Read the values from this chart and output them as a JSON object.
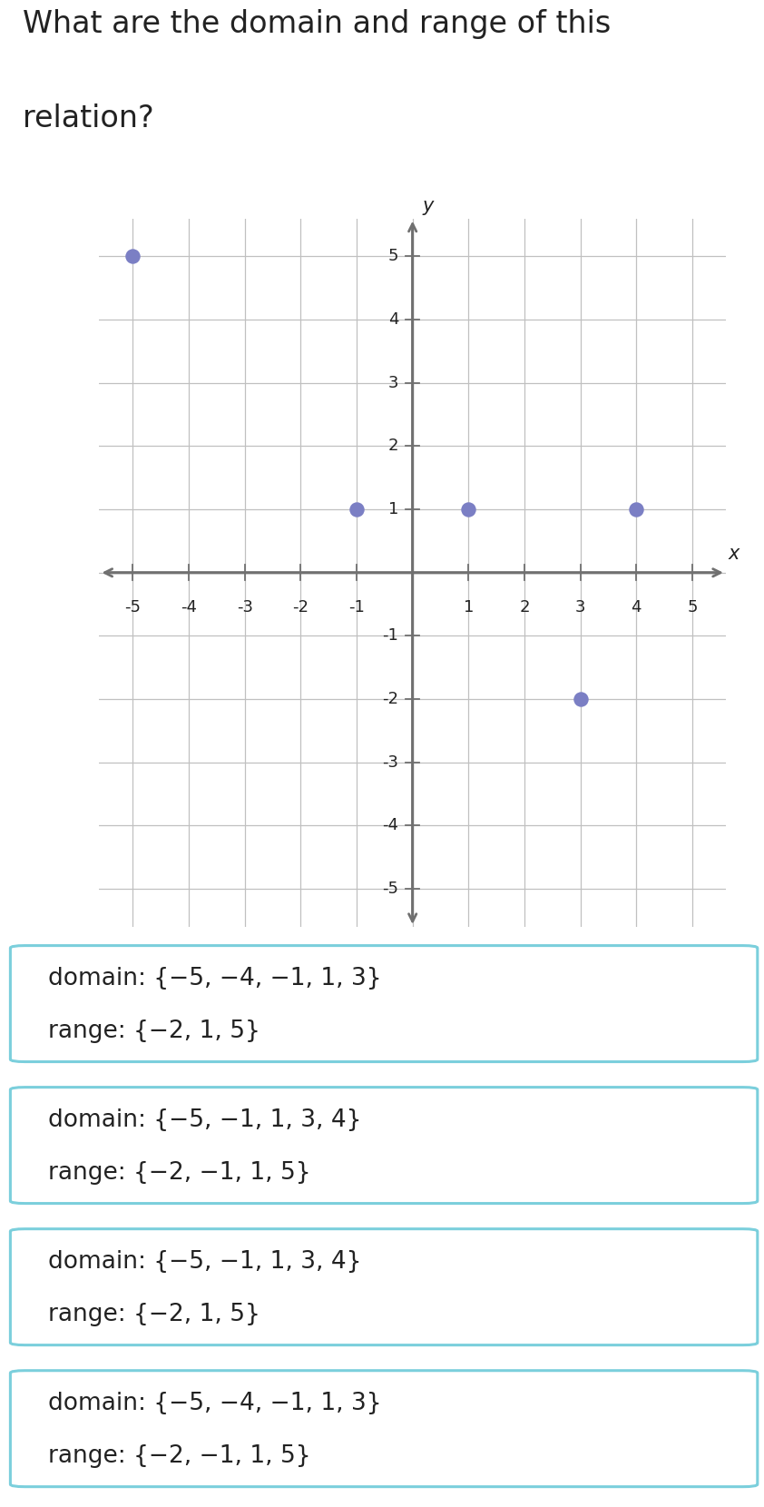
{
  "title_line1": "What are the domain and range of this",
  "title_line2": "relation?",
  "title_fontsize": 24,
  "points": [
    [
      -5,
      5
    ],
    [
      -1,
      1
    ],
    [
      1,
      1
    ],
    [
      3,
      -2
    ],
    [
      4,
      1
    ]
  ],
  "point_color": "#7B7FC4",
  "point_size": 140,
  "axis_range": [
    -5.6,
    5.6,
    -5.6,
    5.6
  ],
  "grid_color": "#C0C0C0",
  "axis_color": "#707070",
  "tick_labels_x": [
    -5,
    -4,
    -3,
    -2,
    -1,
    1,
    2,
    3,
    4,
    5
  ],
  "tick_labels_y": [
    -5,
    -4,
    -3,
    -2,
    -1,
    1,
    2,
    3,
    4,
    5
  ],
  "options": [
    {
      "domain_text": "domain: {−5, −4, −1, 1, 3}",
      "range_text": "range: {−2, 1, 5}"
    },
    {
      "domain_text": "domain: {−5, −1, 1, 3, 4}",
      "range_text": "range: {−2, −1, 1, 5}"
    },
    {
      "domain_text": "domain: {−5, −1, 1, 3, 4}",
      "range_text": "range: {−2, 1, 5}"
    },
    {
      "domain_text": "domain: {−5, −4, −1, 1, 3}",
      "range_text": "range: {−2, −1, 1, 5}"
    }
  ],
  "option_text_fontsize": 19,
  "option_border_color": "#7BCFDC",
  "option_bg_color": "#FFFFFF",
  "bg_color": "#FFFFFF",
  "text_color": "#222222"
}
